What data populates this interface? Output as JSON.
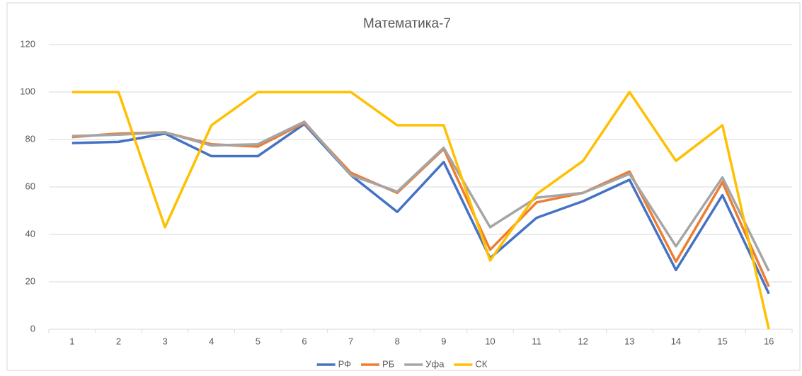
{
  "chart_data": {
    "type": "line",
    "title": "Математика-7",
    "categories": [
      "1",
      "2",
      "3",
      "4",
      "5",
      "6",
      "7",
      "8",
      "9",
      "10",
      "11",
      "12",
      "13",
      "14",
      "15",
      "16"
    ],
    "series": [
      {
        "name": "РФ",
        "color": "#4472c4",
        "values": [
          78.5,
          79,
          82.5,
          73,
          73,
          86.5,
          65,
          49.5,
          70.5,
          30,
          47,
          54,
          63,
          25,
          56.5,
          15
        ]
      },
      {
        "name": "РБ",
        "color": "#ed7d31",
        "values": [
          81,
          82.5,
          83,
          78,
          77,
          87,
          66,
          57.5,
          76,
          33.5,
          53.5,
          57.5,
          66.5,
          28.5,
          62,
          18
        ]
      },
      {
        "name": "Уфа",
        "color": "#a5a5a5",
        "values": [
          81.5,
          82,
          83,
          77.5,
          78,
          87.5,
          65,
          58,
          76.5,
          43,
          55.5,
          57.5,
          65.5,
          35,
          64,
          24.5
        ]
      },
      {
        "name": "СК",
        "color": "#ffc000",
        "values": [
          100,
          100,
          43,
          86,
          100,
          100,
          100,
          86,
          86,
          29,
          57,
          71,
          100,
          71,
          86,
          0
        ]
      }
    ],
    "ylim": [
      0,
      120
    ],
    "yticks": [
      0,
      20,
      40,
      60,
      80,
      100,
      120
    ],
    "grid": true,
    "legend": "bottom"
  }
}
